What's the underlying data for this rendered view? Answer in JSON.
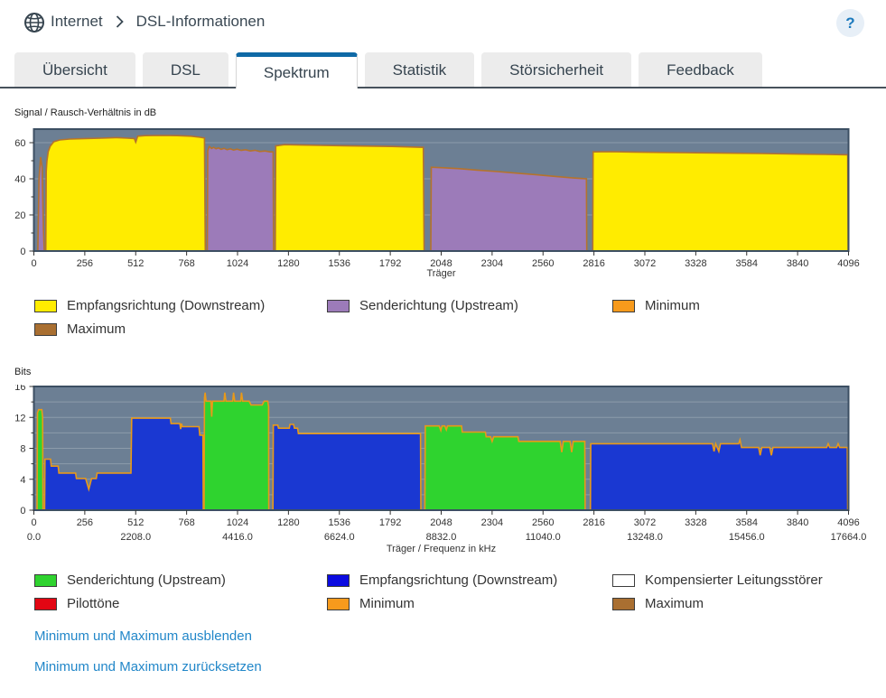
{
  "breadcrumb": {
    "section": "Internet",
    "page": "DSL-Informationen"
  },
  "help": {
    "label": "?"
  },
  "tabs": [
    {
      "label": "Übersicht",
      "active": false
    },
    {
      "label": "DSL",
      "active": false
    },
    {
      "label": "Spektrum",
      "active": true
    },
    {
      "label": "Statistik",
      "active": false
    },
    {
      "label": "Störsicherheit",
      "active": false
    },
    {
      "label": "Feedback",
      "active": false
    }
  ],
  "colors": {
    "accent_tab": "#0f69a6",
    "link": "#2287c9",
    "chart_bg": "#6c7f94",
    "chart_frame": "#3c4f63",
    "grid": "rgba(255,255,255,0.22)",
    "downstream_snr": "#ffec00",
    "upstream_snr": "#9c7bb9",
    "downstream_bits": "#1a38d2",
    "upstream_bits": "#2fd32f",
    "legend_downstream_bits": "#0b0be0",
    "minimum": "#f79a1c",
    "maximum": "#a96f31",
    "pilot": "#e30613",
    "kompensiert": "#ffffff",
    "outline_snr": "#b5732c",
    "outline_bits": "#e8991a"
  },
  "links": [
    {
      "label": "Minimum und Maximum ausblenden"
    },
    {
      "label": "Minimum und Maximum zurücksetzen"
    }
  ],
  "chart_data": [
    {
      "type": "area",
      "title": "Signal / Rausch-Verhältnis in dB",
      "xlabel": "Träger",
      "xlim": [
        0,
        4096
      ],
      "ylim": [
        0,
        67.5
      ],
      "xticks": [
        0,
        256,
        512,
        768,
        1024,
        1280,
        1536,
        1792,
        2048,
        2304,
        2560,
        2816,
        3072,
        3328,
        3584,
        3840,
        4096
      ],
      "yticks": [
        0,
        20,
        40,
        60
      ],
      "yticks_minor": [
        10,
        30,
        50
      ],
      "grid": [
        20,
        40,
        60
      ],
      "legend": [
        {
          "label": "Empfangsrichtung (Downstream)",
          "color_key": "downstream_snr"
        },
        {
          "label": "Senderichtung (Upstream)",
          "color_key": "upstream_snr"
        },
        {
          "label": "Minimum",
          "color_key": "minimum"
        },
        {
          "label": "Maximum",
          "color_key": "maximum"
        }
      ],
      "series": [
        {
          "id": "snr-upstream-us0",
          "name": "Senderichtung (Upstream)",
          "color_key": "upstream_snr",
          "points": [
            [
              20,
              0
            ],
            [
              26,
              40
            ],
            [
              34,
              52
            ],
            [
              42,
              46
            ],
            [
              48,
              12
            ],
            [
              52,
              0
            ]
          ]
        },
        {
          "id": "snr-downstream-band1",
          "name": "Empfangsrichtung (Downstream)",
          "color_key": "downstream_snr",
          "points": [
            [
              60,
              0
            ],
            [
              62,
              44
            ],
            [
              66,
              50
            ],
            [
              72,
              55
            ],
            [
              82,
              58
            ],
            [
              100,
              60.5
            ],
            [
              130,
              61.5
            ],
            [
              180,
              62
            ],
            [
              260,
              62.3
            ],
            [
              340,
              62.5
            ],
            [
              420,
              62.8
            ],
            [
              470,
              62.5
            ],
            [
              505,
              62.3
            ],
            [
              512,
              60.3
            ],
            [
              522,
              63.6
            ],
            [
              560,
              63.9
            ],
            [
              640,
              64
            ],
            [
              720,
              63.9
            ],
            [
              790,
              63.6
            ],
            [
              835,
              63
            ],
            [
              858,
              62.6
            ],
            [
              862,
              0
            ]
          ]
        },
        {
          "id": "snr-upstream-band1",
          "name": "Senderichtung (Upstream)",
          "color_key": "upstream_snr",
          "points": [
            [
              872,
              0
            ],
            [
              874,
              55.5
            ],
            [
              882,
              57.9
            ],
            [
              893,
              56.8
            ],
            [
              904,
              57.4
            ],
            [
              916,
              56.6
            ],
            [
              928,
              57.1
            ],
            [
              942,
              56.3
            ],
            [
              956,
              56.9
            ],
            [
              972,
              56.1
            ],
            [
              988,
              56.6
            ],
            [
              1004,
              55.9
            ],
            [
              1022,
              56.4
            ],
            [
              1042,
              55.7
            ],
            [
              1064,
              56.1
            ],
            [
              1088,
              55.4
            ],
            [
              1112,
              55.8
            ],
            [
              1136,
              55.1
            ],
            [
              1162,
              55.4
            ],
            [
              1186,
              54.9
            ],
            [
              1203,
              54.9
            ],
            [
              1205,
              0
            ]
          ]
        },
        {
          "id": "snr-downstream-band2",
          "name": "Empfangsrichtung (Downstream)",
          "color_key": "downstream_snr",
          "points": [
            [
              1214,
              0
            ],
            [
              1216,
              58.2
            ],
            [
              1260,
              58.9
            ],
            [
              1340,
              58.7
            ],
            [
              1440,
              58.5
            ],
            [
              1560,
              58.3
            ],
            [
              1680,
              58.1
            ],
            [
              1800,
              57.9
            ],
            [
              1900,
              57.6
            ],
            [
              1958,
              57.4
            ],
            [
              1962,
              0
            ]
          ]
        },
        {
          "id": "snr-upstream-band2",
          "name": "Senderichtung (Upstream)",
          "color_key": "upstream_snr",
          "points": [
            [
              1996,
              0
            ],
            [
              1998,
              46.4
            ],
            [
              2060,
              46.1
            ],
            [
              2140,
              45.6
            ],
            [
              2230,
              44.8
            ],
            [
              2330,
              44
            ],
            [
              2430,
              43.1
            ],
            [
              2530,
              42.2
            ],
            [
              2630,
              41.2
            ],
            [
              2720,
              40.4
            ],
            [
              2778,
              40
            ],
            [
              2780,
              0
            ]
          ]
        },
        {
          "id": "snr-downstream-band3",
          "name": "Empfangsrichtung (Downstream)",
          "color_key": "downstream_snr",
          "points": [
            [
              2810,
              0
            ],
            [
              2812,
              54.9
            ],
            [
              2900,
              55
            ],
            [
              3020,
              54.8
            ],
            [
              3160,
              54.6
            ],
            [
              3320,
              54.4
            ],
            [
              3490,
              54.2
            ],
            [
              3660,
              54
            ],
            [
              3830,
              53.7
            ],
            [
              3980,
              53.5
            ],
            [
              4092,
              53.3
            ],
            [
              4094,
              0
            ]
          ]
        }
      ]
    },
    {
      "type": "area",
      "title": "Bits",
      "xlabel": "Träger / Frequenz in kHz",
      "xlim": [
        0,
        4096
      ],
      "ylim": [
        0,
        16
      ],
      "xticks": [
        0,
        256,
        512,
        768,
        1024,
        1280,
        1536,
        1792,
        2048,
        2304,
        2560,
        2816,
        3072,
        3328,
        3584,
        3840,
        4096
      ],
      "xticks_khz": [
        {
          "t": 0,
          "label": "0.0"
        },
        {
          "t": 512,
          "label": "2208.0"
        },
        {
          "t": 1024,
          "label": "4416.0"
        },
        {
          "t": 1536,
          "label": "6624.0"
        },
        {
          "t": 2048,
          "label": "8832.0"
        },
        {
          "t": 2560,
          "label": "11040.0"
        },
        {
          "t": 3072,
          "label": "13248.0"
        },
        {
          "t": 3584,
          "label": "15456.0"
        },
        {
          "t": 4096,
          "label": "17664.0"
        }
      ],
      "yticks": [
        0,
        4,
        8,
        12,
        16
      ],
      "yticks_minor": [
        2,
        6,
        10,
        14
      ],
      "grid": [
        2,
        4,
        6,
        8,
        10,
        12,
        14
      ],
      "legend": [
        {
          "label": "Senderichtung (Upstream)",
          "color_key": "upstream_bits"
        },
        {
          "label": "Empfangsrichtung (Downstream)",
          "color_key": "legend_downstream_bits"
        },
        {
          "label": "Kompensierter Leitungsstörer",
          "color_key": "kompensiert"
        },
        {
          "label": "Pilottöne",
          "color_key": "pilot"
        },
        {
          "label": "Minimum",
          "color_key": "minimum"
        },
        {
          "label": "Maximum",
          "color_key": "maximum"
        }
      ],
      "series": [
        {
          "id": "bits-upstream-us0",
          "name": "Senderichtung (Upstream)",
          "color_key": "upstream_bits",
          "points": [
            [
              16,
              0
            ],
            [
              18,
              12.6
            ],
            [
              24,
              13
            ],
            [
              40,
              13
            ],
            [
              44,
              12
            ],
            [
              46,
              0
            ]
          ]
        },
        {
          "id": "bits-downstream-band1",
          "name": "Empfangsrichtung (Downstream)",
          "color_key": "downstream_bits",
          "points": [
            [
              54,
              0
            ],
            [
              56,
              6.6
            ],
            [
              84,
              6.6
            ],
            [
              87,
              5.7
            ],
            [
              122,
              5.7
            ],
            [
              126,
              4.8
            ],
            [
              210,
              4.8
            ],
            [
              214,
              4.1
            ],
            [
              260,
              4.1
            ],
            [
              276,
              2.7
            ],
            [
              290,
              4.1
            ],
            [
              314,
              4.1
            ],
            [
              318,
              4.8
            ],
            [
              488,
              4.8
            ],
            [
              492,
              11.9
            ],
            [
              600,
              11.9
            ],
            [
              686,
              11.9
            ],
            [
              690,
              11.2
            ],
            [
              734,
              11.2
            ],
            [
              738,
              10.5
            ],
            [
              742,
              11.2
            ],
            [
              746,
              10.8
            ],
            [
              830,
              10.8
            ],
            [
              834,
              9.7
            ],
            [
              850,
              9.7
            ],
            [
              852,
              0
            ]
          ]
        },
        {
          "id": "bits-upstream-band1",
          "name": "Senderichtung (Upstream)",
          "color_key": "upstream_bits",
          "points": [
            [
              856,
              0
            ],
            [
              858,
              14.5
            ],
            [
              861,
              15.2
            ],
            [
              866,
              14.1
            ],
            [
              890,
              14.1
            ],
            [
              894,
              12.1
            ],
            [
              898,
              14.1
            ],
            [
              956,
              14.1
            ],
            [
              960,
              15.2
            ],
            [
              966,
              14.1
            ],
            [
              1000,
              14.1
            ],
            [
              1004,
              15.2
            ],
            [
              1010,
              14.1
            ],
            [
              1040,
              14.1
            ],
            [
              1044,
              15.2
            ],
            [
              1050,
              14.1
            ],
            [
              1082,
              14.1
            ],
            [
              1092,
              13.6
            ],
            [
              1148,
              13.6
            ],
            [
              1158,
              14.1
            ],
            [
              1176,
              14.1
            ],
            [
              1180,
              13.4
            ],
            [
              1181,
              0
            ]
          ]
        },
        {
          "id": "bits-downstream-band2",
          "name": "Empfangsrichtung (Downstream)",
          "color_key": "downstream_bits",
          "points": [
            [
              1202,
              0
            ],
            [
              1204,
              11
            ],
            [
              1226,
              11
            ],
            [
              1230,
              10.6
            ],
            [
              1284,
              10.6
            ],
            [
              1288,
              11.1
            ],
            [
              1306,
              11.1
            ],
            [
              1310,
              10.6
            ],
            [
              1326,
              10.6
            ],
            [
              1330,
              9.9
            ],
            [
              1944,
              9.9
            ],
            [
              1946,
              0
            ]
          ]
        },
        {
          "id": "bits-upstream-band2",
          "name": "Senderichtung (Upstream)",
          "color_key": "upstream_bits",
          "points": [
            [
              1966,
              0
            ],
            [
              1968,
              10.9
            ],
            [
              2038,
              10.9
            ],
            [
              2046,
              10.3
            ],
            [
              2052,
              10.9
            ],
            [
              2066,
              10.9
            ],
            [
              2074,
              10.4
            ],
            [
              2080,
              10.9
            ],
            [
              2150,
              10.9
            ],
            [
              2154,
              10.1
            ],
            [
              2270,
              10.1
            ],
            [
              2274,
              9.5
            ],
            [
              2296,
              9.5
            ],
            [
              2304,
              8.9
            ],
            [
              2312,
              9.5
            ],
            [
              2434,
              9.5
            ],
            [
              2438,
              8.9
            ],
            [
              2646,
              8.9
            ],
            [
              2654,
              7.5
            ],
            [
              2662,
              8.9
            ],
            [
              2696,
              8.9
            ],
            [
              2704,
              7.5
            ],
            [
              2712,
              8.9
            ],
            [
              2770,
              8.9
            ],
            [
              2772,
              0
            ]
          ]
        },
        {
          "id": "bits-downstream-band3",
          "name": "Empfangsrichtung (Downstream)",
          "color_key": "downstream_bits",
          "points": [
            [
              2798,
              0
            ],
            [
              2800,
              8.6
            ],
            [
              3412,
              8.6
            ],
            [
              3420,
              7.6
            ],
            [
              3428,
              8.6
            ],
            [
              3444,
              7.6
            ],
            [
              3452,
              8.6
            ],
            [
              3544,
              8.6
            ],
            [
              3550,
              9.1
            ],
            [
              3558,
              8.1
            ],
            [
              3644,
              8.1
            ],
            [
              3652,
              7.1
            ],
            [
              3660,
              8.1
            ],
            [
              3700,
              8.1
            ],
            [
              3708,
              7.1
            ],
            [
              3716,
              8.1
            ],
            [
              3986,
              8.1
            ],
            [
              3994,
              8.6
            ],
            [
              4002,
              8.1
            ],
            [
              4036,
              8.1
            ],
            [
              4044,
              8.6
            ],
            [
              4052,
              8.1
            ],
            [
              4090,
              8.1
            ],
            [
              4092,
              0
            ]
          ]
        }
      ]
    }
  ]
}
